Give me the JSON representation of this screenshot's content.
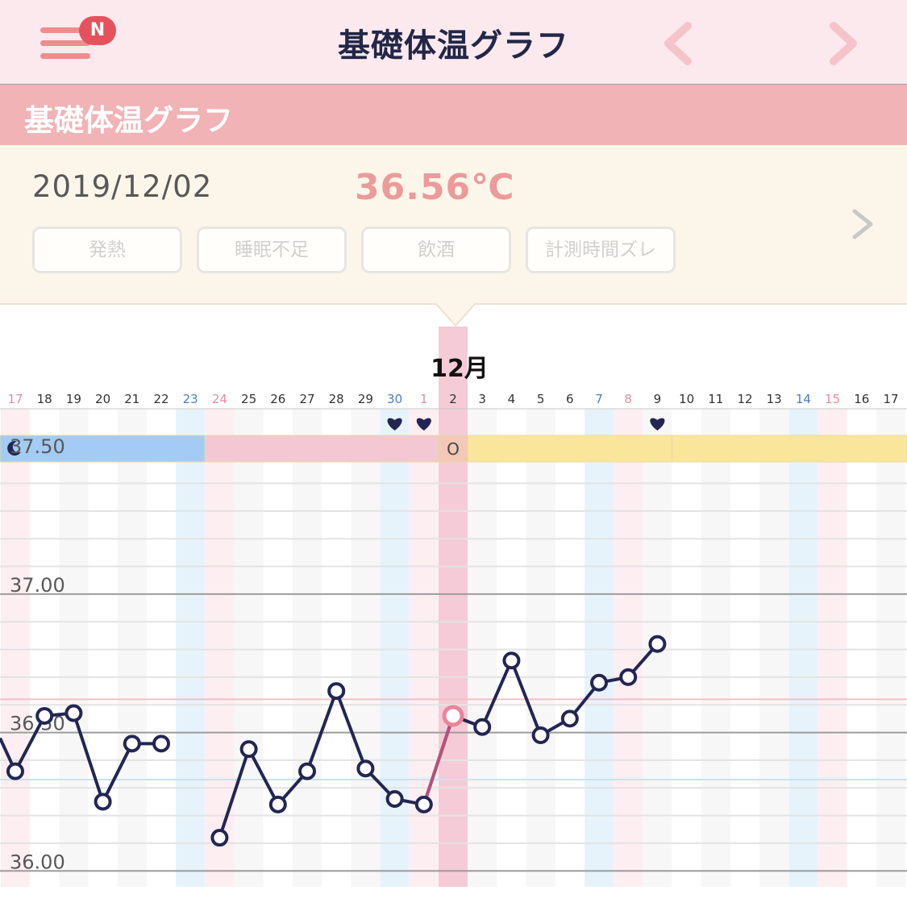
{
  "header": {
    "title": "基礎体温グラフ",
    "menu_badge": "N",
    "icons": [
      "menu-icon",
      "chevron-left-icon",
      "chevron-right-icon"
    ]
  },
  "section": {
    "title": "基礎体温グラフ"
  },
  "detail": {
    "date": "2019/12/02",
    "temperature": "36.56℃",
    "tags": [
      "発熱",
      "睡眠不足",
      "飲酒",
      "計測時間ズレ"
    ]
  },
  "colors": {
    "nav_bg": "#fbe9ee",
    "section_bg": "#f1b3b6",
    "detail_bg": "#fcf6ea",
    "temp_text": "#ec9a9a",
    "line": "#232652",
    "selected_point": "#e9849a",
    "saturday": "#4a7ccf",
    "sunday": "#e98ca0",
    "phase_menstrual": "#a3cbf6",
    "phase_follicular": "#f3c8d2",
    "phase_luteal": "#fae69a"
  },
  "chart_data": {
    "type": "line",
    "month_label": "12月",
    "x": [
      "17",
      "18",
      "19",
      "20",
      "21",
      "22",
      "23",
      "24",
      "25",
      "26",
      "27",
      "28",
      "29",
      "30",
      "1",
      "2",
      "3",
      "4",
      "5",
      "6",
      "7",
      "8",
      "9",
      "10",
      "11",
      "12",
      "13",
      "14",
      "15",
      "16",
      "17"
    ],
    "saturday_labels": [
      "23",
      "30",
      "7",
      "14"
    ],
    "sunday_labels": [
      "17",
      "24",
      "1",
      "8",
      "15"
    ],
    "selected": "2",
    "series": [
      {
        "values": [
          36.36,
          36.56,
          36.57,
          36.25,
          36.46,
          36.46,
          null,
          36.12,
          36.44,
          36.24,
          36.36,
          36.65,
          36.37,
          36.26,
          36.24,
          36.56,
          36.52,
          36.76,
          36.49,
          36.55,
          36.68,
          36.7,
          36.82,
          null,
          null,
          null,
          null,
          null,
          null,
          null,
          null
        ]
      }
    ],
    "series_before_start": 36.48,
    "ylim": [
      35.96,
      37.56
    ],
    "yticks": [
      "37.50",
      "37.00",
      "36.50",
      "36.00"
    ],
    "intercourse_days": [
      "30",
      "1",
      "9"
    ],
    "phase_bar": [
      {
        "phase": "menstrual",
        "icon": "moon-icon",
        "from": "17",
        "to": "23"
      },
      {
        "phase": "follicular",
        "from": "24",
        "to": "1"
      },
      {
        "phase": "ovulation",
        "label": "O",
        "from": "2",
        "to": "2"
      },
      {
        "phase": "luteal",
        "from": "3",
        "to": "9"
      },
      {
        "phase": "luteal",
        "from": "10",
        "to": "17"
      }
    ]
  }
}
